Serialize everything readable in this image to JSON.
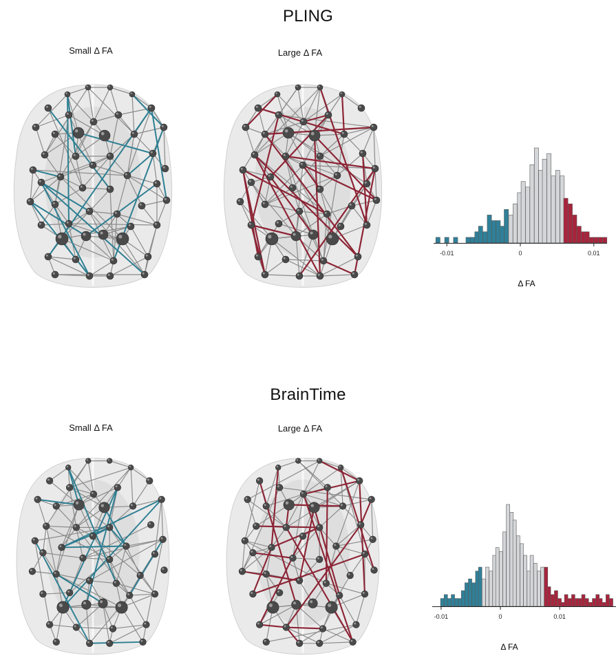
{
  "panels": [
    {
      "title": "PLING",
      "left_label": "Small Δ FA",
      "right_label": "Large Δ FA",
      "small_color": "#2e7f92",
      "large_color": "#8c2435"
    },
    {
      "title": "BrainTime",
      "left_label": "Small Δ FA",
      "right_label": "Large Δ FA",
      "small_color": "#2e7f92",
      "large_color": "#8c2435"
    }
  ],
  "colors": {
    "small": "#2f8099",
    "middle": "#d4d6d9",
    "large": "#a8243c",
    "node": "#4a4a4a",
    "edge": "#8a8a8a"
  },
  "chart_data": [
    {
      "type": "bar",
      "panel": "PLING",
      "xlabel": "Δ FA",
      "ylabel": "",
      "bin_width": 0.00058,
      "xlim": [
        -0.0118,
        0.0118
      ],
      "xticks": [
        -0.01,
        0,
        0.01
      ],
      "xtick_labels": [
        "-0.01",
        "0",
        "0.01"
      ],
      "bins": [
        {
          "x": -0.0115,
          "count": 1,
          "group": "small"
        },
        {
          "x": -0.0109,
          "count": 0,
          "group": "small"
        },
        {
          "x": -0.0103,
          "count": 1,
          "group": "small"
        },
        {
          "x": -0.0097,
          "count": 0,
          "group": "small"
        },
        {
          "x": -0.0091,
          "count": 1,
          "group": "small"
        },
        {
          "x": -0.0086,
          "count": 0,
          "group": "small"
        },
        {
          "x": -0.008,
          "count": 0,
          "group": "small"
        },
        {
          "x": -0.0074,
          "count": 1,
          "group": "small"
        },
        {
          "x": -0.0068,
          "count": 1,
          "group": "small"
        },
        {
          "x": -0.0062,
          "count": 2,
          "group": "small"
        },
        {
          "x": -0.0057,
          "count": 3,
          "group": "small"
        },
        {
          "x": -0.0051,
          "count": 2,
          "group": "small"
        },
        {
          "x": -0.0045,
          "count": 5,
          "group": "small"
        },
        {
          "x": -0.0039,
          "count": 4,
          "group": "small"
        },
        {
          "x": -0.0033,
          "count": 4,
          "group": "small"
        },
        {
          "x": -0.0028,
          "count": 3,
          "group": "small"
        },
        {
          "x": -0.0022,
          "count": 6,
          "group": "small"
        },
        {
          "x": -0.0016,
          "count": 5,
          "group": "middle"
        },
        {
          "x": -0.001,
          "count": 7,
          "group": "middle"
        },
        {
          "x": -0.0004,
          "count": 9,
          "group": "middle"
        },
        {
          "x": 0.0001,
          "count": 11,
          "group": "middle"
        },
        {
          "x": 0.0007,
          "count": 10,
          "group": "middle"
        },
        {
          "x": 0.0013,
          "count": 14,
          "group": "middle"
        },
        {
          "x": 0.0019,
          "count": 17,
          "group": "middle"
        },
        {
          "x": 0.0025,
          "count": 13,
          "group": "middle"
        },
        {
          "x": 0.003,
          "count": 15,
          "group": "middle"
        },
        {
          "x": 0.0036,
          "count": 16,
          "group": "middle"
        },
        {
          "x": 0.0042,
          "count": 12,
          "group": "middle"
        },
        {
          "x": 0.0048,
          "count": 13,
          "group": "middle"
        },
        {
          "x": 0.0054,
          "count": 12,
          "group": "middle"
        },
        {
          "x": 0.0059,
          "count": 8,
          "group": "large"
        },
        {
          "x": 0.0065,
          "count": 7,
          "group": "large"
        },
        {
          "x": 0.0071,
          "count": 5,
          "group": "large"
        },
        {
          "x": 0.0077,
          "count": 3,
          "group": "large"
        },
        {
          "x": 0.0083,
          "count": 2,
          "group": "large"
        },
        {
          "x": 0.0088,
          "count": 2,
          "group": "large"
        },
        {
          "x": 0.0094,
          "count": 1,
          "group": "large"
        },
        {
          "x": 0.01,
          "count": 1,
          "group": "large"
        },
        {
          "x": 0.0106,
          "count": 1,
          "group": "large"
        },
        {
          "x": 0.0112,
          "count": 1,
          "group": "large"
        }
      ]
    },
    {
      "type": "bar",
      "panel": "BrainTime",
      "xlabel": "Δ FA",
      "ylabel": "",
      "bin_width": 0.00058,
      "xlim": [
        -0.0115,
        0.0195
      ],
      "xticks": [
        -0.01,
        0,
        0.01
      ],
      "xtick_labels": [
        "-0.01",
        "0",
        "0.01"
      ],
      "bins": [
        {
          "x": -0.0101,
          "count": 2,
          "group": "small"
        },
        {
          "x": -0.0095,
          "count": 3,
          "group": "small"
        },
        {
          "x": -0.0089,
          "count": 2,
          "group": "small"
        },
        {
          "x": -0.0083,
          "count": 3,
          "group": "small"
        },
        {
          "x": -0.0077,
          "count": 2,
          "group": "small"
        },
        {
          "x": -0.0071,
          "count": 2,
          "group": "small"
        },
        {
          "x": -0.0066,
          "count": 4,
          "group": "small"
        },
        {
          "x": -0.006,
          "count": 6,
          "group": "small"
        },
        {
          "x": -0.0054,
          "count": 7,
          "group": "small"
        },
        {
          "x": -0.0048,
          "count": 6,
          "group": "small"
        },
        {
          "x": -0.0042,
          "count": 9,
          "group": "small"
        },
        {
          "x": -0.0037,
          "count": 10,
          "group": "small"
        },
        {
          "x": -0.0031,
          "count": 7,
          "group": "middle"
        },
        {
          "x": -0.0025,
          "count": 10,
          "group": "middle"
        },
        {
          "x": -0.0019,
          "count": 9,
          "group": "middle"
        },
        {
          "x": -0.0013,
          "count": 13,
          "group": "middle"
        },
        {
          "x": -0.0008,
          "count": 15,
          "group": "middle"
        },
        {
          "x": -0.0002,
          "count": 14,
          "group": "middle"
        },
        {
          "x": 0.0004,
          "count": 19,
          "group": "middle"
        },
        {
          "x": 0.001,
          "count": 26,
          "group": "middle"
        },
        {
          "x": 0.0016,
          "count": 24,
          "group": "middle"
        },
        {
          "x": 0.0021,
          "count": 22,
          "group": "middle"
        },
        {
          "x": 0.0027,
          "count": 18,
          "group": "middle"
        },
        {
          "x": 0.0033,
          "count": 16,
          "group": "middle"
        },
        {
          "x": 0.0039,
          "count": 13,
          "group": "middle"
        },
        {
          "x": 0.0045,
          "count": 9,
          "group": "middle"
        },
        {
          "x": 0.005,
          "count": 13,
          "group": "middle"
        },
        {
          "x": 0.0056,
          "count": 11,
          "group": "middle"
        },
        {
          "x": 0.0062,
          "count": 9,
          "group": "middle"
        },
        {
          "x": 0.0068,
          "count": 10,
          "group": "middle"
        },
        {
          "x": 0.0074,
          "count": 10,
          "group": "large"
        },
        {
          "x": 0.0079,
          "count": 5,
          "group": "large"
        },
        {
          "x": 0.0085,
          "count": 3,
          "group": "large"
        },
        {
          "x": 0.0091,
          "count": 4,
          "group": "large"
        },
        {
          "x": 0.0097,
          "count": 2,
          "group": "large"
        },
        {
          "x": 0.0103,
          "count": 1,
          "group": "large"
        },
        {
          "x": 0.0108,
          "count": 3,
          "group": "large"
        },
        {
          "x": 0.0114,
          "count": 2,
          "group": "large"
        },
        {
          "x": 0.012,
          "count": 3,
          "group": "large"
        },
        {
          "x": 0.0126,
          "count": 2,
          "group": "large"
        },
        {
          "x": 0.0132,
          "count": 2,
          "group": "large"
        },
        {
          "x": 0.0137,
          "count": 3,
          "group": "large"
        },
        {
          "x": 0.0143,
          "count": 2,
          "group": "large"
        },
        {
          "x": 0.0149,
          "count": 1,
          "group": "large"
        },
        {
          "x": 0.0155,
          "count": 2,
          "group": "large"
        },
        {
          "x": 0.0161,
          "count": 3,
          "group": "large"
        },
        {
          "x": 0.0166,
          "count": 2,
          "group": "large"
        },
        {
          "x": 0.0172,
          "count": 1,
          "group": "large"
        },
        {
          "x": 0.0178,
          "count": 3,
          "group": "large"
        },
        {
          "x": 0.0184,
          "count": 2,
          "group": "large"
        }
      ]
    }
  ]
}
